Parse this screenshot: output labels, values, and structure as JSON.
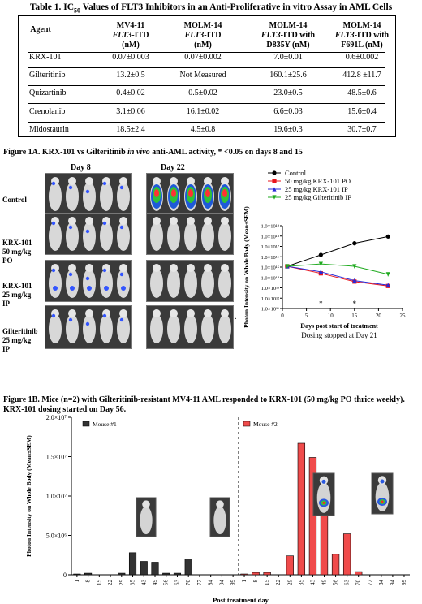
{
  "table": {
    "title_prefix": "Table 1. IC",
    "title_sub": "50",
    "title_suffix": " Values of FLT3 Inhibitors in an Anti-Proliferative in vitro Assay in AML Cells",
    "headers": [
      {
        "l1": "Agent",
        "l2": "",
        "l3": ""
      },
      {
        "l1": "MV4-11",
        "l2": "FLT3-ITD",
        "l3": "(nM)"
      },
      {
        "l1": "MOLM-14",
        "l2": "FLT3-ITD",
        "l3": "(nM)"
      },
      {
        "l1": "MOLM-14",
        "l2": "FLT3-ITD with",
        "l3": "D835Y (nM)"
      },
      {
        "l1": "MOLM-14",
        "l2": "FLT3-ITD with",
        "l3": "F691L (nM)"
      }
    ],
    "rows": [
      {
        "agent": "KRX-101",
        "mv4": "0.07±0.003",
        "molm": "0.07±0.002",
        "d835y": "7.0±0.01",
        "f691l": "0.6±0.002"
      },
      {
        "agent": "Gilteritinib",
        "mv4": "13.2±0.5",
        "molm": "Not Measured",
        "d835y": "160.1±25.6",
        "f691l": "412.8 ±11.7"
      },
      {
        "agent": "Quizartinib",
        "mv4": "0.4±0.02",
        "molm": "0.5±0.02",
        "d835y": "23.0±0.5",
        "f691l": "48.5±0.6"
      },
      {
        "agent": "Crenolanib",
        "mv4": "3.1±0.06",
        "molm": "16.1±0.02",
        "d835y": "6.6±0.03",
        "f691l": "15.6±0.4"
      },
      {
        "agent": "Midostaurin",
        "mv4": "18.5±2.4",
        "molm": "4.5±0.8",
        "d835y": "19.6±0.3",
        "f691l": "30.7±0.7"
      }
    ]
  },
  "fig1a": {
    "title_part1": "Figure 1A. KRX-101 vs Gilteritinib ",
    "title_italic": "in vivo",
    "title_part2": " anti-AML activity, * <0.05 on days 8 and 15",
    "day8": "Day 8",
    "day22": "Day 22",
    "groups": [
      {
        "l1": "Control",
        "l2": "",
        "l3": ""
      },
      {
        "l1": "KRX-101",
        "l2": "50 mg/kg",
        "l3": "PO"
      },
      {
        "l1": "KRX-101",
        "l2": "25 mg/kg",
        "l3": "IP"
      },
      {
        "l1": "Gilteritinib",
        "l2": "25 mg/kg",
        "l3": "IP"
      }
    ],
    "dot": "."
  },
  "chart_data": [
    {
      "type": "line",
      "title": "",
      "xlabel": "Days post start of treatment",
      "ylabel": "Photon Intensity on Whole Body (Mean±SEM)",
      "note": "Dosing stopped at  Day 21",
      "y_scale": "log",
      "ylim": [
        100000000000,
        10000000000000000000
      ],
      "yticks": [
        "1.0×10¹⁹",
        "1.0×10¹⁸",
        "1.0×10¹⁷",
        "1.0×10¹⁶",
        "1.0×10¹⁵",
        "1.0×10¹⁴",
        "1.0×10¹³",
        "1.0×10¹²",
        "1.0×10¹¹"
      ],
      "xlim": [
        0,
        25
      ],
      "xticks": [
        0,
        5,
        10,
        15,
        20,
        25
      ],
      "legend_position": "top",
      "series": [
        {
          "name": "Control",
          "color": "#000000",
          "marker": "circle",
          "x": [
            1,
            8,
            15,
            22
          ],
          "y": [
            1200000000000000.0,
            1.5e+16,
            2e+17,
            9e+17
          ]
        },
        {
          "name": "50 mg/kg KRX-101 PO",
          "color": "#e8141c",
          "marker": "square",
          "x": [
            1,
            8,
            15,
            22
          ],
          "y": [
            1200000000000000.0,
            250000000000000.0,
            40000000000000.0,
            15000000000000.0
          ]
        },
        {
          "name": "25 mg/kg KRX-101 IP",
          "color": "#2929d6",
          "marker": "triangle-up",
          "x": [
            1,
            8,
            15,
            22
          ],
          "y": [
            1200000000000000.0,
            350000000000000.0,
            50000000000000.0,
            18000000000000.0
          ]
        },
        {
          "name": "25 mg/kg Gilteritinib IP",
          "color": "#1faa1f",
          "marker": "triangle-down",
          "x": [
            1,
            8,
            15,
            22
          ],
          "y": [
            1200000000000000.0,
            2000000000000000.0,
            1200000000000000.0,
            200000000000000.0
          ]
        }
      ],
      "annotations": [
        {
          "x": 8,
          "text": "*"
        },
        {
          "x": 15,
          "text": "*"
        }
      ]
    },
    {
      "type": "bar",
      "title": "",
      "xlabel": "Post treatment day",
      "ylabel": "Photon Intensity on Whole Body (Mean±SEM)",
      "ylim": [
        0,
        20000000
      ],
      "yticks": [
        {
          "value": 0,
          "label": "0"
        },
        {
          "value": 5000000,
          "label": "5.0×10⁶"
        },
        {
          "value": 10000000,
          "label": "1.0×10⁷"
        },
        {
          "value": 15000000,
          "label": "1.5×10⁷"
        },
        {
          "value": 20000000,
          "label": "2.0×10⁷"
        }
      ],
      "legend_position": "top",
      "series": [
        {
          "name": "Mouse #1",
          "color": "#333333",
          "categories": [
            "1",
            "8",
            "15",
            "22",
            "29",
            "35",
            "43",
            "49",
            "56",
            "63",
            "70",
            "77",
            "84",
            "94",
            "99"
          ],
          "values": [
            100000,
            200000,
            0,
            0,
            200000,
            2800000,
            1700000,
            1600000,
            200000,
            200000,
            2000000,
            0,
            0,
            0,
            0
          ]
        },
        {
          "name": "Mouse #2",
          "color": "#f04b4b",
          "categories": [
            "1",
            "8",
            "15",
            "22",
            "29",
            "35",
            "43",
            "49",
            "56",
            "63",
            "70",
            "77",
            "84",
            "94",
            "99"
          ],
          "values": [
            100000,
            300000,
            300000,
            0,
            2400000,
            16700000,
            14900000,
            9300000,
            2600000,
            5200000,
            400000,
            0,
            0,
            0,
            0
          ]
        }
      ],
      "divider_between_series": true
    }
  ],
  "fig1b": {
    "title": "Figure 1B. Mice (n=2) with Gilteritinib-resistant MV4-11 AML responded to KRX-101 (50 mg/kg PO thrice weekly). KRX-101 dosing started on Day 56."
  }
}
